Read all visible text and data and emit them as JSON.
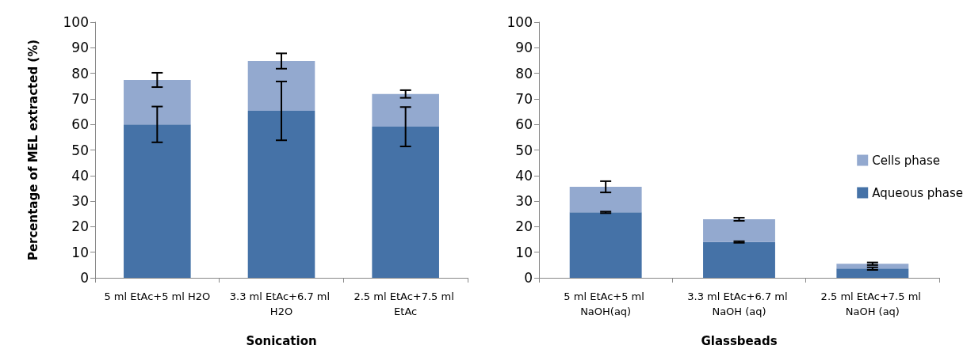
{
  "chart_data": [
    {
      "type": "bar",
      "stacked": true,
      "xlabel": "Sonication",
      "ylabel": "Percentage of MEL extracted (%)",
      "categories": [
        "5 ml EtAc+5 ml H2O",
        "3.3 ml EtAc+6.7 ml H2O",
        "2.5 ml EtAc+7.5 ml EtAc"
      ],
      "ylim": [
        0,
        100
      ],
      "yticks": [
        0,
        10,
        20,
        30,
        40,
        50,
        60,
        70,
        80,
        90,
        100
      ],
      "grid": false,
      "legend": false,
      "series": [
        {
          "color": "#4572a7",
          "values": [
            60,
            65.3,
            59.1
          ],
          "errors": [
            7,
            11.5,
            7.7
          ]
        },
        {
          "color": "#93a9cf",
          "values": [
            17.4,
            19.5,
            12.8
          ],
          "errors": [
            2.8,
            3,
            1.5
          ]
        }
      ]
    },
    {
      "type": "bar",
      "stacked": true,
      "xlabel": "Glassbeads",
      "categories": [
        "5 ml EtAc+5 ml NaOH(aq)",
        "3.3 ml EtAc+6.7 ml NaOH (aq)",
        "2.5 ml EtAc+7.5 ml NaOH (aq)"
      ],
      "ylim": [
        0,
        100
      ],
      "yticks": [
        0,
        10,
        20,
        30,
        40,
        50,
        60,
        70,
        80,
        90,
        100
      ],
      "grid": false,
      "legend": "right",
      "series": [
        {
          "name": "Aqueous phase",
          "color": "#4572a7",
          "values": [
            25.6,
            14,
            3.6
          ],
          "errors": [
            0.3,
            0.3,
            0.5
          ]
        },
        {
          "name": "Cells phase",
          "color": "#93a9cf",
          "values": [
            10,
            8.9,
            1.9
          ],
          "errors": [
            2.2,
            0.6,
            0.5
          ]
        }
      ]
    }
  ]
}
